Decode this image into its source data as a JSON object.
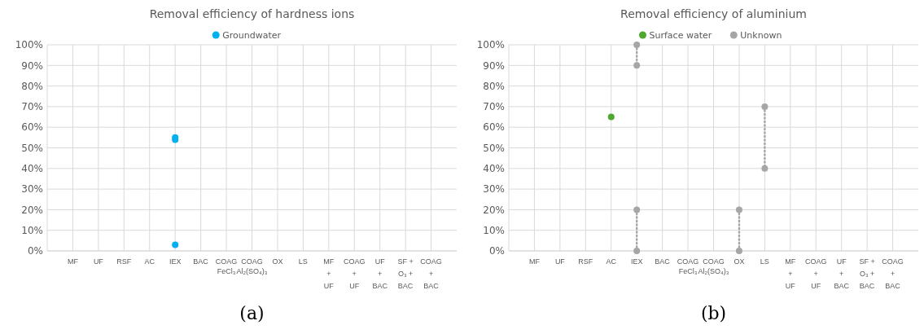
{
  "chart_data": [
    {
      "type": "scatter",
      "title": "Removal efficiency of hardness ions",
      "categories": [
        "MF",
        "UF",
        "RSF",
        "AC",
        "IEX",
        "BAC",
        "COAG\nFeCl₃",
        "COAG\nAl₂(SO₄)₃",
        "OX",
        "LS",
        "MF\n+\nUF",
        "COAG\n+\nUF",
        "UF\n+\nBAC",
        "SF +\nO₃ +\nBAC",
        "COAG\n+\nBAC"
      ],
      "series": [
        {
          "name": "Groundwater",
          "color": "#00b0f0",
          "x": [
            "IEX",
            "IEX",
            "IEX"
          ],
          "values": [
            55,
            54,
            3
          ]
        }
      ],
      "ylim": [
        0,
        100
      ],
      "yticks": [
        {
          "value": 0,
          "label": "0%"
        },
        {
          "value": 10,
          "label": "10%"
        },
        {
          "value": 20,
          "label": "20%"
        },
        {
          "value": 30,
          "label": "30%"
        },
        {
          "value": 40,
          "label": "40%"
        },
        {
          "value": 50,
          "label": "50%"
        },
        {
          "value": 60,
          "label": "60%"
        },
        {
          "value": 70,
          "label": "70%"
        },
        {
          "value": 80,
          "label": "80%"
        },
        {
          "value": 90,
          "label": "90%"
        },
        {
          "value": 100,
          "label": "100%"
        }
      ],
      "grid": true,
      "legend": "top",
      "marker": "circle",
      "annotations": [
        "(a)"
      ]
    },
    {
      "type": "scatter",
      "title": "Removal efficiency of aluminium",
      "categories": [
        "MF",
        "UF",
        "RSF",
        "AC",
        "IEX",
        "BAC",
        "COAG\nFeCl₃",
        "COAG\nAl₂(SO₄)₃",
        "OX",
        "LS",
        "MF\n+\nUF",
        "COAG\n+\nUF",
        "UF\n+\nBAC",
        "SF +\nO₃ +\nBAC",
        "COAG\n+\nBAC"
      ],
      "series": [
        {
          "name": "Surface water",
          "color": "#4ea72e",
          "x": [
            "AC"
          ],
          "values": [
            65
          ]
        },
        {
          "name": "Unknown",
          "type": "line",
          "line_style": "dotted",
          "color": "#a6a6a6",
          "x": [
            "IEX",
            "IEX"
          ],
          "values": [
            100,
            90
          ]
        },
        {
          "type": "line",
          "line_style": "dotted",
          "color": "#a6a6a6",
          "x": [
            "IEX",
            "IEX"
          ],
          "values": [
            20,
            0
          ]
        },
        {
          "type": "line",
          "line_style": "dotted",
          "color": "#a6a6a6",
          "x": [
            "OX",
            "OX"
          ],
          "values": [
            20,
            0
          ]
        },
        {
          "type": "line",
          "line_style": "dotted",
          "color": "#a6a6a6",
          "x": [
            "LS",
            "LS"
          ],
          "values": [
            70,
            40
          ]
        }
      ],
      "ylim": [
        0,
        100
      ],
      "yticks": [
        {
          "value": 0,
          "label": "0%"
        },
        {
          "value": 10,
          "label": "10%"
        },
        {
          "value": 20,
          "label": "20%"
        },
        {
          "value": 30,
          "label": "30%"
        },
        {
          "value": 40,
          "label": "40%"
        },
        {
          "value": 50,
          "label": "50%"
        },
        {
          "value": 60,
          "label": "60%"
        },
        {
          "value": 70,
          "label": "70%"
        },
        {
          "value": 80,
          "label": "80%"
        },
        {
          "value": 90,
          "label": "90%"
        },
        {
          "value": 100,
          "label": "100%"
        }
      ],
      "grid": true,
      "legend": "top",
      "marker": "circle",
      "annotations": [
        "(b)"
      ]
    }
  ]
}
